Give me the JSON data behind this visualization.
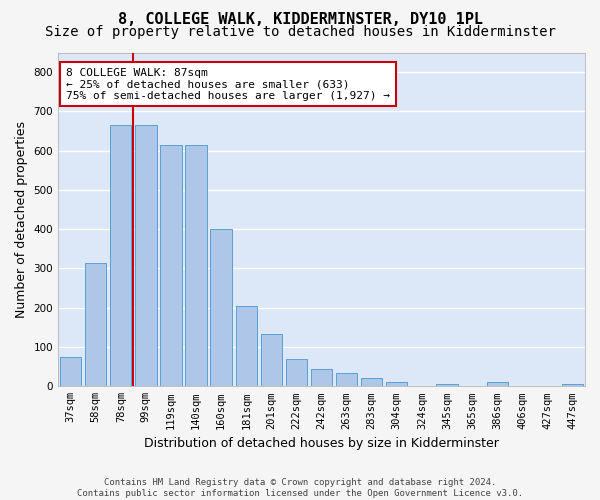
{
  "title": "8, COLLEGE WALK, KIDDERMINSTER, DY10 1PL",
  "subtitle": "Size of property relative to detached houses in Kidderminster",
  "xlabel": "Distribution of detached houses by size in Kidderminster",
  "ylabel": "Number of detached properties",
  "categories": [
    "37sqm",
    "58sqm",
    "78sqm",
    "99sqm",
    "119sqm",
    "140sqm",
    "160sqm",
    "181sqm",
    "201sqm",
    "222sqm",
    "242sqm",
    "263sqm",
    "283sqm",
    "304sqm",
    "324sqm",
    "345sqm",
    "365sqm",
    "386sqm",
    "406sqm",
    "427sqm",
    "447sqm"
  ],
  "values": [
    75,
    315,
    665,
    665,
    615,
    615,
    400,
    205,
    133,
    70,
    45,
    35,
    20,
    12,
    0,
    5,
    0,
    10,
    0,
    0,
    7
  ],
  "bar_color": "#aec6e8",
  "bar_edge_color": "#5a9fd4",
  "plot_bg_color": "#dce8f7",
  "fig_bg_color": "#f5f5f5",
  "grid_color": "#ffffff",
  "vline_pos": 2.5,
  "vline_color": "#cc0000",
  "annotation_text": "8 COLLEGE WALK: 87sqm\n← 25% of detached houses are smaller (633)\n75% of semi-detached houses are larger (1,927) →",
  "annotation_box_facecolor": "#ffffff",
  "annotation_box_edgecolor": "#cc0000",
  "ylim": [
    0,
    850
  ],
  "yticks": [
    0,
    100,
    200,
    300,
    400,
    500,
    600,
    700,
    800
  ],
  "title_fontsize": 11,
  "subtitle_fontsize": 10,
  "ylabel_fontsize": 9,
  "xlabel_fontsize": 9,
  "tick_fontsize": 7.5,
  "annotation_fontsize": 8,
  "footer_fontsize": 6.5,
  "footer": "Contains HM Land Registry data © Crown copyright and database right 2024.\nContains public sector information licensed under the Open Government Licence v3.0."
}
